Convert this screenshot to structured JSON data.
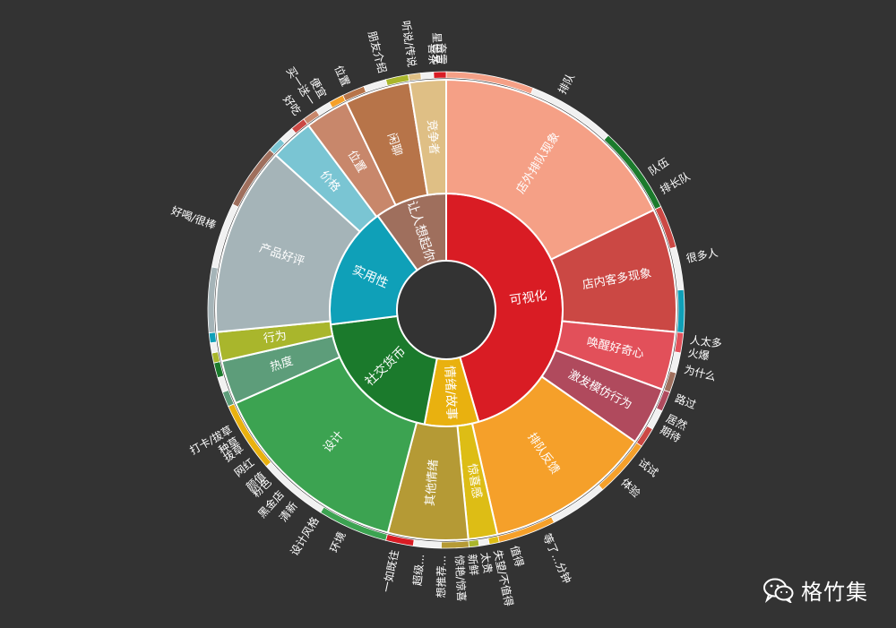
{
  "chart_data": {
    "type": "sunburst",
    "inner": [
      {
        "name": "可视化",
        "color": "#d91c24",
        "value": 45.5
      },
      {
        "name": "情绪/故事",
        "color": "#e9b10f",
        "value": 7.5
      },
      {
        "name": "社交货币",
        "color": "#1b7a2c",
        "value": 20
      },
      {
        "name": "实用性",
        "color": "#0fa0b8",
        "value": 17
      },
      {
        "name": "让人想起你",
        "color": "#9f6f5d",
        "value": 10
      }
    ],
    "middle": [
      {
        "name": "店外排队现象",
        "parent": "可视化",
        "color": "#f5a086",
        "value": 17.5
      },
      {
        "name": "店内客多现象",
        "parent": "可视化",
        "color": "#cb4844",
        "value": 8.5
      },
      {
        "name": "唤醒好奇心",
        "parent": "可视化",
        "color": "#e2505a",
        "value": 4
      },
      {
        "name": "激发模仿行为",
        "parent": "可视化",
        "color": "#b04a5d",
        "value": 4
      },
      {
        "name": "排队反馈",
        "parent": "可视化",
        "color": "#f5a02a",
        "value": 11.5
      },
      {
        "name": "惊喜感",
        "parent": "情绪/故事",
        "color": "#ddbd15",
        "value": 2
      },
      {
        "name": "其他情绪",
        "parent": "情绪/故事",
        "color": "#b59a35",
        "value": 5.5
      },
      {
        "name": "设计",
        "parent": "社交货币",
        "color": "#3ca351",
        "value": 14
      },
      {
        "name": "热度",
        "parent": "社交货币",
        "color": "#5d9d7a",
        "value": 3
      },
      {
        "name": "行为",
        "parent": "社交货币",
        "color": "#a9b62c",
        "value": 2
      },
      {
        "name": "产品好评",
        "parent": "实用性",
        "color": "#a5b4b8",
        "value": 13
      },
      {
        "name": "价格",
        "parent": "实用性",
        "color": "#7ac5d3",
        "value": 3
      },
      {
        "name": "位置",
        "parent": "让人想起你",
        "color": "#c8876b",
        "value": 3
      },
      {
        "name": "闲聊",
        "parent": "让人想起你",
        "color": "#b77449",
        "value": 4.5
      },
      {
        "name": "竞争者",
        "parent": "让人想起你",
        "color": "#dfbf85",
        "value": 2.5
      }
    ],
    "outer_labels": [
      {
        "text": "排队",
        "angle": 28
      },
      {
        "text": "队伍",
        "angle": 56
      },
      {
        "text": "排长队",
        "angle": 61
      },
      {
        "text": "很多人",
        "angle": 78
      },
      {
        "text": "人太多",
        "angle": 97
      },
      {
        "text": "火爆",
        "angle": 100
      },
      {
        "text": "为什么",
        "angle": 104
      },
      {
        "text": "路过",
        "angle": 111
      },
      {
        "text": "居然",
        "angle": 116
      },
      {
        "text": "期待",
        "angle": 119
      },
      {
        "text": "试试",
        "angle": 128
      },
      {
        "text": "体验",
        "angle": 134
      },
      {
        "text": "等了...分钟",
        "angle": 156
      },
      {
        "text": "值得",
        "angle": 164
      },
      {
        "text": "失望/不值得",
        "angle": 168
      },
      {
        "text": "太贵",
        "angle": 171
      },
      {
        "text": "新鲜",
        "angle": 174
      },
      {
        "text": "惊艳/惊喜",
        "angle": 177
      },
      {
        "text": "想推荐...",
        "angle": 181
      },
      {
        "text": "超级...",
        "angle": 186
      },
      {
        "text": "一如既往",
        "angle": 192
      },
      {
        "text": "环境",
        "angle": 205
      },
      {
        "text": "设计风格",
        "angle": 212
      },
      {
        "text": "清新",
        "angle": 218
      },
      {
        "text": "黑金店",
        "angle": 222
      },
      {
        "text": "粉色",
        "angle": 226
      },
      {
        "text": "颜值",
        "angle": 228
      },
      {
        "text": "网红",
        "angle": 232
      },
      {
        "text": "拔草",
        "angle": 236
      },
      {
        "text": "种草",
        "angle": 238
      },
      {
        "text": "打卡/拔草",
        "angle": 241
      },
      {
        "text": "好喝/很棒",
        "angle": 290
      },
      {
        "text": "好吃",
        "angle": 323
      },
      {
        "text": "买一送一",
        "angle": 327
      },
      {
        "text": "便宜",
        "angle": 330
      },
      {
        "text": "位置",
        "angle": 336
      },
      {
        "text": "朋友介绍",
        "angle": 345
      },
      {
        "text": "听说/传说",
        "angle": 352
      },
      {
        "text": "喜茶",
        "angle": 357
      },
      {
        "text": "奈雪",
        "angle": 359
      },
      {
        "text": "星巴克",
        "angle": 358
      }
    ]
  },
  "watermark": {
    "text": "格竹集",
    "icon": "wechat-icon"
  }
}
